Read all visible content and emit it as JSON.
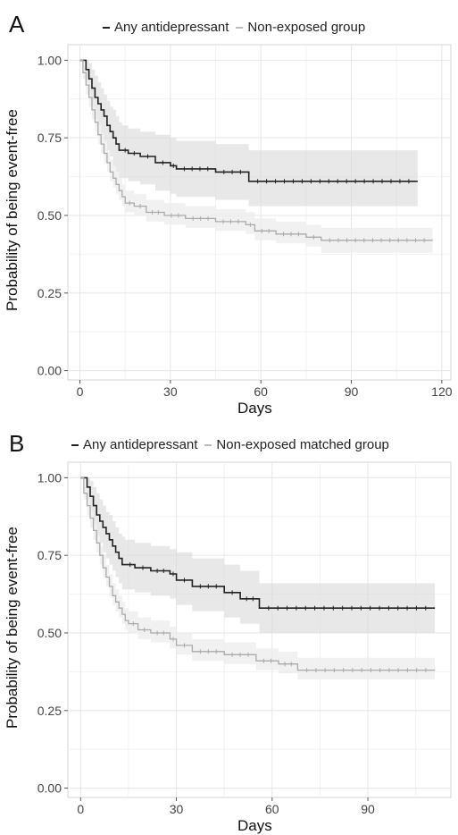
{
  "chart_data": [
    {
      "panel_label": "A",
      "type": "line",
      "step": true,
      "xlabel": "Days",
      "ylabel": "Probability of being event-free",
      "xlim": [
        -4,
        123
      ],
      "ylim": [
        -0.03,
        1.05
      ],
      "xticks": [
        0,
        30,
        60,
        90,
        120
      ],
      "yticks": [
        "0.00",
        "0.25",
        "0.50",
        "0.75",
        "1.00"
      ],
      "grid": true,
      "legend_position": "top",
      "series": [
        {
          "name": "Any antidepressant",
          "color": "#222222",
          "x": [
            0,
            2,
            3,
            4,
            5,
            6,
            7,
            8,
            9,
            10,
            11,
            12,
            13,
            14,
            16,
            20,
            25,
            30,
            32,
            45,
            56,
            112
          ],
          "y": [
            1.0,
            0.97,
            0.94,
            0.91,
            0.88,
            0.86,
            0.84,
            0.82,
            0.79,
            0.77,
            0.75,
            0.73,
            0.71,
            0.71,
            0.7,
            0.69,
            0.67,
            0.66,
            0.65,
            0.64,
            0.61,
            0.61
          ],
          "ci_upper": [
            1.0,
            1.0,
            0.99,
            0.97,
            0.95,
            0.93,
            0.91,
            0.89,
            0.87,
            0.85,
            0.84,
            0.82,
            0.8,
            0.79,
            0.78,
            0.77,
            0.76,
            0.75,
            0.74,
            0.73,
            0.71,
            0.71
          ],
          "ci_lower": [
            1.0,
            0.93,
            0.89,
            0.85,
            0.81,
            0.79,
            0.76,
            0.74,
            0.71,
            0.69,
            0.66,
            0.64,
            0.62,
            0.62,
            0.61,
            0.6,
            0.58,
            0.57,
            0.56,
            0.55,
            0.53,
            0.53
          ]
        },
        {
          "name": "Non-exposed group",
          "color": "#aaaaaa",
          "x": [
            0,
            1,
            2,
            3,
            4,
            5,
            6,
            7,
            8,
            9,
            10,
            11,
            12,
            13,
            14,
            15,
            18,
            22,
            28,
            35,
            45,
            55,
            58,
            65,
            75,
            80,
            117
          ],
          "y": [
            1.0,
            0.96,
            0.92,
            0.88,
            0.84,
            0.8,
            0.76,
            0.73,
            0.7,
            0.67,
            0.64,
            0.62,
            0.6,
            0.58,
            0.56,
            0.54,
            0.53,
            0.51,
            0.5,
            0.49,
            0.48,
            0.47,
            0.45,
            0.44,
            0.43,
            0.42,
            0.42
          ],
          "ci_upper": [
            1.0,
            0.98,
            0.95,
            0.91,
            0.87,
            0.84,
            0.8,
            0.77,
            0.74,
            0.71,
            0.68,
            0.66,
            0.64,
            0.62,
            0.6,
            0.58,
            0.57,
            0.55,
            0.54,
            0.53,
            0.52,
            0.51,
            0.49,
            0.48,
            0.47,
            0.46,
            0.46
          ],
          "ci_lower": [
            1.0,
            0.94,
            0.89,
            0.85,
            0.81,
            0.77,
            0.73,
            0.7,
            0.67,
            0.64,
            0.61,
            0.59,
            0.57,
            0.55,
            0.53,
            0.51,
            0.5,
            0.48,
            0.47,
            0.46,
            0.45,
            0.44,
            0.42,
            0.41,
            0.4,
            0.38,
            0.38
          ]
        }
      ]
    },
    {
      "panel_label": "B",
      "type": "line",
      "step": true,
      "xlabel": "Days",
      "ylabel": "Probability of being event-free",
      "xlim": [
        -4,
        116
      ],
      "ylim": [
        -0.03,
        1.05
      ],
      "xticks": [
        0,
        30,
        60,
        90
      ],
      "yticks": [
        "0.00",
        "0.25",
        "0.50",
        "0.75",
        "1.00"
      ],
      "grid": true,
      "legend_position": "top",
      "series": [
        {
          "name": "Any antidepressant",
          "color": "#222222",
          "x": [
            0,
            2,
            3,
            4,
            5,
            6,
            7,
            8,
            9,
            10,
            11,
            12,
            13,
            14,
            17,
            22,
            28,
            30,
            35,
            45,
            50,
            56,
            111
          ],
          "y": [
            1.0,
            0.97,
            0.94,
            0.91,
            0.88,
            0.86,
            0.84,
            0.82,
            0.8,
            0.78,
            0.76,
            0.74,
            0.72,
            0.72,
            0.71,
            0.7,
            0.69,
            0.67,
            0.65,
            0.63,
            0.61,
            0.58,
            0.58
          ],
          "ci_upper": [
            1.0,
            1.0,
            0.99,
            0.97,
            0.95,
            0.93,
            0.91,
            0.89,
            0.88,
            0.86,
            0.84,
            0.82,
            0.81,
            0.8,
            0.79,
            0.78,
            0.77,
            0.76,
            0.74,
            0.72,
            0.7,
            0.66,
            0.66
          ],
          "ci_lower": [
            1.0,
            0.93,
            0.89,
            0.85,
            0.81,
            0.79,
            0.76,
            0.74,
            0.72,
            0.7,
            0.68,
            0.66,
            0.64,
            0.64,
            0.63,
            0.62,
            0.61,
            0.59,
            0.57,
            0.55,
            0.53,
            0.5,
            0.5
          ]
        },
        {
          "name": "Non-exposed matched group",
          "color": "#aaaaaa",
          "x": [
            0,
            1,
            2,
            3,
            4,
            5,
            6,
            7,
            8,
            9,
            10,
            11,
            12,
            13,
            14,
            15,
            18,
            22,
            28,
            30,
            35,
            45,
            55,
            62,
            68,
            111
          ],
          "y": [
            1.0,
            0.95,
            0.91,
            0.87,
            0.83,
            0.79,
            0.75,
            0.71,
            0.68,
            0.65,
            0.62,
            0.6,
            0.58,
            0.56,
            0.54,
            0.53,
            0.51,
            0.5,
            0.48,
            0.46,
            0.44,
            0.43,
            0.41,
            0.4,
            0.38,
            0.38
          ],
          "ci_upper": [
            1.0,
            0.97,
            0.94,
            0.9,
            0.86,
            0.82,
            0.78,
            0.75,
            0.72,
            0.69,
            0.66,
            0.64,
            0.62,
            0.6,
            0.58,
            0.57,
            0.55,
            0.54,
            0.52,
            0.5,
            0.48,
            0.47,
            0.45,
            0.44,
            0.42,
            0.42
          ],
          "ci_lower": [
            1.0,
            0.93,
            0.88,
            0.84,
            0.8,
            0.76,
            0.72,
            0.68,
            0.65,
            0.62,
            0.59,
            0.57,
            0.55,
            0.53,
            0.51,
            0.5,
            0.48,
            0.47,
            0.45,
            0.43,
            0.41,
            0.4,
            0.38,
            0.37,
            0.35,
            0.35
          ]
        }
      ]
    }
  ]
}
